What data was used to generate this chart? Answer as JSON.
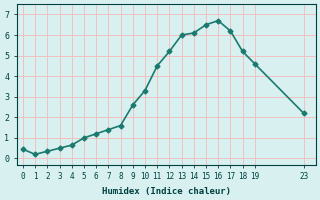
{
  "x": [
    0,
    1,
    2,
    3,
    4,
    5,
    6,
    7,
    8,
    9,
    10,
    11,
    12,
    13,
    14,
    15,
    16,
    17,
    18,
    19,
    23
  ],
  "y": [
    0.45,
    0.2,
    0.35,
    0.5,
    0.65,
    1.0,
    1.2,
    1.4,
    1.6,
    2.6,
    3.3,
    4.5,
    5.2,
    6.0,
    6.1,
    6.5,
    6.7,
    6.2,
    5.2,
    4.6,
    2.2
  ],
  "xtick_positions": [
    0,
    1,
    2,
    3,
    4,
    5,
    6,
    7,
    8,
    9,
    10,
    11,
    12,
    13,
    14,
    15,
    16,
    17,
    18,
    19,
    23
  ],
  "xtick_labels": [
    "0",
    "1",
    "2",
    "3",
    "4",
    "5",
    "6",
    "7",
    "8",
    "9",
    "10",
    "11",
    "12",
    "13",
    "14",
    "15",
    "16",
    "17",
    "18",
    "19",
    "23"
  ],
  "yticks": [
    0,
    1,
    2,
    3,
    4,
    5,
    6,
    7
  ],
  "line_color": "#1a7a6e",
  "bg_color": "#d8f0f0",
  "grid_color": "#f0c0c0",
  "xlabel": "Humidex (Indice chaleur)",
  "xlabel_color": "#004040",
  "tick_color": "#004040",
  "ylim": [
    -0.3,
    7.5
  ],
  "xlim": [
    -0.5,
    24.0
  ],
  "marker": "D",
  "markersize": 2.5,
  "linewidth": 1.2
}
